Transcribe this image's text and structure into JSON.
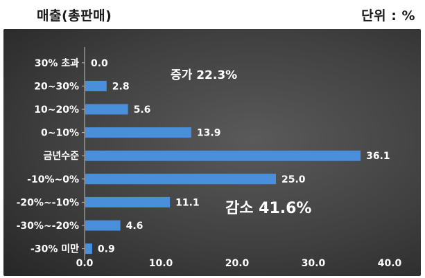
{
  "header": {
    "left_label": "매출(총판매)",
    "right_label": "단위 : %"
  },
  "annotations": {
    "increase": "증가 22.3%",
    "decrease": "감소 41.6%"
  },
  "colors": {
    "bar": "#4a8fdc",
    "text": "#ffffff",
    "axis": "#bfbfbf"
  },
  "chart_data": {
    "type": "bar",
    "orientation": "horizontal",
    "categories": [
      "30% 초과",
      "20~30%",
      "10~20%",
      "0~10%",
      "금년수준",
      "-10%~0%",
      "-20%~-10%",
      "-30%~-20%",
      "-30% 미만"
    ],
    "values": [
      0.0,
      2.8,
      5.6,
      13.9,
      36.1,
      25.0,
      11.1,
      4.6,
      0.9
    ],
    "value_labels": [
      "0.0",
      "2.8",
      "5.6",
      "13.9",
      "36.1",
      "25.0",
      "11.1",
      "4.6",
      "0.9"
    ],
    "xlim": [
      0,
      40
    ],
    "x_ticks": [
      "0.0",
      "10.0",
      "20.0",
      "30.0",
      "40.0"
    ],
    "grid": false,
    "legend": "none"
  }
}
